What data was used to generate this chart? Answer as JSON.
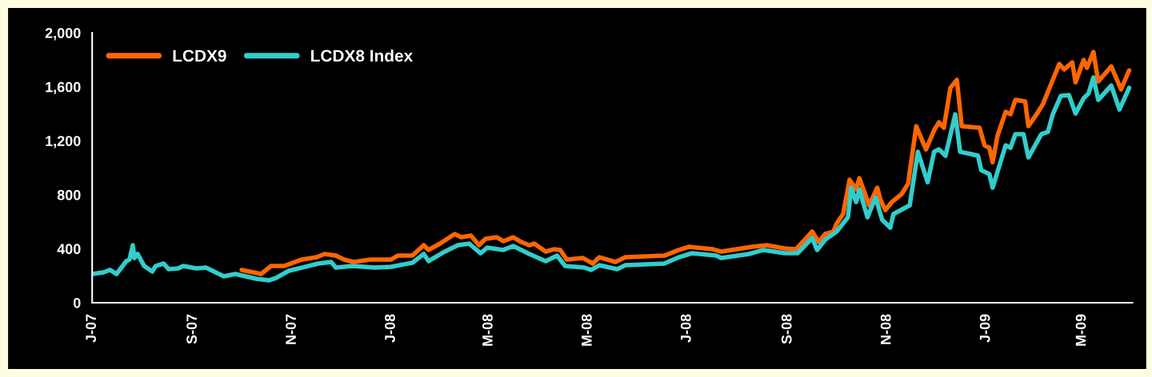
{
  "chart_data": {
    "type": "line",
    "grid": false,
    "legend": "top left",
    "marker": "none",
    "line_style": "solid",
    "xlim": [
      "2007-07-01",
      "2009-04-01"
    ],
    "ylim": [
      0,
      2000
    ],
    "xticks": [
      {
        "value": "2007-07-01",
        "label": "J-07"
      },
      {
        "value": "2007-09-01",
        "label": "S-07"
      },
      {
        "value": "2007-11-01",
        "label": "N-07"
      },
      {
        "value": "2008-01-01",
        "label": "J-08"
      },
      {
        "value": "2008-03-01",
        "label": "M-08"
      },
      {
        "value": "2008-05-01",
        "label": "M-08"
      },
      {
        "value": "2008-07-01",
        "label": "J-08"
      },
      {
        "value": "2008-09-01",
        "label": "S-08"
      },
      {
        "value": "2008-11-01",
        "label": "N-08"
      },
      {
        "value": "2009-01-01",
        "label": "J-09"
      },
      {
        "value": "2009-03-01",
        "label": "M-09"
      }
    ],
    "yticks": [
      0,
      400,
      800,
      {
        "value": 1200,
        "label": "1,200"
      },
      {
        "value": 1600,
        "label": "1,600"
      },
      {
        "value": 2000,
        "label": "2,000"
      }
    ],
    "series": [
      {
        "name": "LCDX9",
        "color": "#ff6600",
        "x": [
          "2007-10-01",
          "2007-10-13",
          "2007-10-19",
          "2007-10-27",
          "2007-11-07",
          "2007-11-16",
          "2007-11-21",
          "2007-11-28",
          "2007-12-03",
          "2007-12-09",
          "2007-12-19",
          "2008-01-01",
          "2008-01-05",
          "2008-01-14",
          "2008-01-21",
          "2008-01-24",
          "2008-01-31",
          "2008-02-09",
          "2008-02-13",
          "2008-02-19",
          "2008-02-24",
          "2008-02-28",
          "2008-03-06",
          "2008-03-10",
          "2008-03-16",
          "2008-03-21",
          "2008-03-26",
          "2008-03-29",
          "2008-04-05",
          "2008-04-10",
          "2008-04-14",
          "2008-04-18",
          "2008-04-28",
          "2008-05-04",
          "2008-05-08",
          "2008-05-18",
          "2008-05-24",
          "2008-06-17",
          "2008-06-26",
          "2008-07-02",
          "2008-07-17",
          "2008-07-22",
          "2008-08-10",
          "2008-08-19",
          "2008-08-30",
          "2008-09-06",
          "2008-09-16",
          "2008-09-20",
          "2008-09-24",
          "2008-09-29",
          "2008-10-01",
          "2008-10-05",
          "2008-10-09",
          "2008-10-13",
          "2008-10-15",
          "2008-10-21",
          "2008-10-26",
          "2008-10-28",
          "2008-10-31",
          "2008-11-04",
          "2008-11-10",
          "2008-11-14",
          "2008-11-19",
          "2008-11-25",
          "2008-11-30",
          "2008-12-03",
          "2008-12-06",
          "2008-12-10",
          "2008-12-14",
          "2008-12-17",
          "2008-12-28",
          "2008-12-31",
          "2009-01-03",
          "2009-01-05",
          "2009-01-08",
          "2009-01-13",
          "2009-01-16",
          "2009-01-19",
          "2009-01-25",
          "2009-01-27",
          "2009-02-02",
          "2009-02-05",
          "2009-02-09",
          "2009-02-15",
          "2009-02-18",
          "2009-02-23",
          "2009-02-25",
          "2009-03-02",
          "2009-03-04",
          "2009-03-08",
          "2009-03-11",
          "2009-03-19",
          "2009-03-25",
          "2009-03-30"
        ],
        "values": [
          243,
          213,
          272,
          272,
          320,
          337,
          361,
          349,
          320,
          302,
          320,
          320,
          349,
          349,
          426,
          391,
          438,
          509,
          485,
          497,
          426,
          473,
          485,
          456,
          485,
          450,
          426,
          438,
          379,
          396,
          391,
          320,
          331,
          290,
          337,
          302,
          337,
          349,
          391,
          414,
          396,
          379,
          414,
          426,
          402,
          396,
          527,
          450,
          509,
          527,
          586,
          657,
          911,
          840,
          923,
          722,
          852,
          763,
          686,
          746,
          805,
          882,
          1308,
          1136,
          1278,
          1337,
          1296,
          1592,
          1651,
          1308,
          1296,
          1166,
          1148,
          1041,
          1237,
          1414,
          1396,
          1503,
          1491,
          1308,
          1414,
          1473,
          1592,
          1769,
          1728,
          1781,
          1633,
          1799,
          1740,
          1858,
          1639,
          1751,
          1580,
          1722
        ]
      },
      {
        "name": "LCDX8 Index",
        "color": "#33cccc",
        "x": [
          "2007-07-01",
          "2007-07-08",
          "2007-07-12",
          "2007-07-16",
          "2007-07-22",
          "2007-07-24",
          "2007-07-26",
          "2007-07-27",
          "2007-07-29",
          "2007-08-02",
          "2007-08-07",
          "2007-08-09",
          "2007-08-14",
          "2007-08-17",
          "2007-08-23",
          "2007-08-26",
          "2007-09-03",
          "2007-09-09",
          "2007-09-20",
          "2007-09-27",
          "2007-10-10",
          "2007-10-18",
          "2007-10-22",
          "2007-10-30",
          "2007-11-07",
          "2007-11-17",
          "2007-11-25",
          "2007-11-28",
          "2007-12-08",
          "2007-12-22",
          "2008-01-01",
          "2008-01-14",
          "2008-01-21",
          "2008-01-24",
          "2008-02-03",
          "2008-02-11",
          "2008-02-18",
          "2008-02-25",
          "2008-02-29",
          "2008-03-10",
          "2008-03-16",
          "2008-03-26",
          "2008-04-05",
          "2008-04-12",
          "2008-04-17",
          "2008-04-29",
          "2008-05-03",
          "2008-05-08",
          "2008-05-19",
          "2008-05-24",
          "2008-06-17",
          "2008-06-26",
          "2008-07-04",
          "2008-07-19",
          "2008-07-22",
          "2008-08-08",
          "2008-08-17",
          "2008-08-30",
          "2008-09-07",
          "2008-09-16",
          "2008-09-19",
          "2008-09-24",
          "2008-10-01",
          "2008-10-08",
          "2008-10-10",
          "2008-10-13",
          "2008-10-15",
          "2008-10-20",
          "2008-10-25",
          "2008-10-29",
          "2008-11-03",
          "2008-11-05",
          "2008-11-15",
          "2008-11-20",
          "2008-11-26",
          "2008-11-30",
          "2008-12-03",
          "2008-12-07",
          "2008-12-13",
          "2008-12-16",
          "2008-12-23",
          "2008-12-27",
          "2008-12-29",
          "2009-01-03",
          "2009-01-05",
          "2009-01-13",
          "2009-01-16",
          "2009-01-19",
          "2009-01-24",
          "2009-01-27",
          "2009-02-04",
          "2009-02-08",
          "2009-02-11",
          "2009-02-16",
          "2009-02-21",
          "2009-02-25",
          "2009-03-02",
          "2009-03-05",
          "2009-03-08",
          "2009-03-11",
          "2009-03-19",
          "2009-03-24",
          "2009-03-30"
        ],
        "values": [
          213,
          225,
          243,
          213,
          308,
          320,
          426,
          331,
          361,
          272,
          231,
          272,
          290,
          249,
          254,
          272,
          254,
          260,
          195,
          213,
          178,
          166,
          183,
          237,
          260,
          290,
          302,
          260,
          272,
          260,
          266,
          296,
          361,
          308,
          379,
          426,
          438,
          367,
          408,
          391,
          420,
          361,
          308,
          349,
          272,
          260,
          243,
          278,
          249,
          278,
          290,
          337,
          367,
          349,
          331,
          361,
          391,
          367,
          367,
          480,
          391,
          467,
          527,
          633,
          852,
          746,
          840,
          633,
          781,
          615,
          556,
          657,
          722,
          1118,
          893,
          1118,
          1136,
          1089,
          1396,
          1118,
          1101,
          1089,
          982,
          953,
          852,
          1166,
          1148,
          1249,
          1249,
          1077,
          1249,
          1266,
          1396,
          1533,
          1538,
          1402,
          1515,
          1550,
          1669,
          1503,
          1609,
          1432,
          1592
        ]
      }
    ]
  }
}
